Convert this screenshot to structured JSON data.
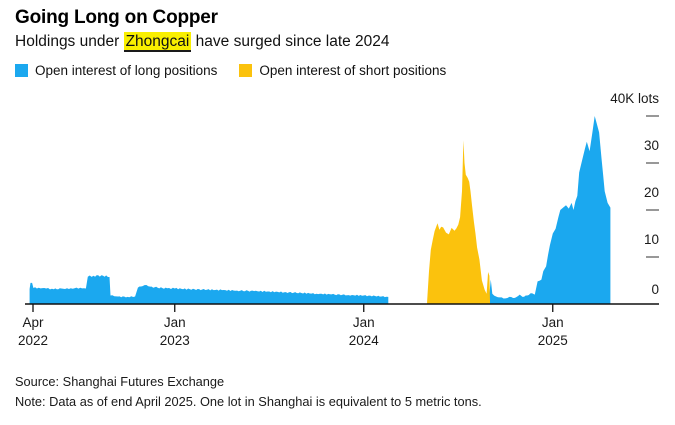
{
  "header": {
    "title": "Going Long on Copper",
    "subtitle_prefix": "Holdings under ",
    "subtitle_highlight": "Zhongcai",
    "subtitle_suffix": " have surged since late 2024",
    "highlight_color": "#F9EF00"
  },
  "legend": {
    "long_label": "Open interest of long positions",
    "short_label": "Open interest of short positions",
    "long_color": "#1BA8EF",
    "short_color": "#FBC20D"
  },
  "chart_data": {
    "type": "area",
    "title": "Going Long on Copper",
    "ylabel": "K lots",
    "unit": "thousand lots (1 lot = 5 metric tons)",
    "x_unit": "decimal_year",
    "x_range": [
      2022.2,
      2025.35
    ],
    "ylim": [
      0,
      40
    ],
    "grid": false,
    "legend_position": "top-left",
    "y_ticks": [
      {
        "label": "40K lots",
        "value": 40
      },
      {
        "label": "30",
        "value": 30
      },
      {
        "label": "20",
        "value": 20
      },
      {
        "label": "10",
        "value": 10
      },
      {
        "label": "0",
        "value": 0
      }
    ],
    "x_ticks": [
      {
        "month": "Apr",
        "year": "2022",
        "value": 2022.25
      },
      {
        "month": "Jan",
        "year": "2023",
        "value": 2023.0
      },
      {
        "month": "Jan",
        "year": "2024",
        "value": 2024.0
      },
      {
        "month": "Jan",
        "year": "2025",
        "value": 2025.0
      }
    ],
    "series": [
      {
        "name": "Open interest of long positions",
        "color": "#1BA8EF",
        "segments": [
          [
            [
              2022.232,
              3.2
            ],
            [
              2022.237,
              4.5
            ],
            [
              2022.245,
              4.5
            ],
            [
              2022.252,
              3.4
            ],
            [
              2022.28,
              3.45
            ],
            [
              2022.32,
              3.3
            ],
            [
              2022.36,
              3.15
            ],
            [
              2022.4,
              3.3
            ],
            [
              2022.44,
              3.2
            ],
            [
              2022.47,
              3.35
            ],
            [
              2022.5,
              3.45
            ],
            [
              2022.53,
              3.3
            ],
            [
              2022.54,
              5.8
            ],
            [
              2022.57,
              6.0
            ],
            [
              2022.62,
              6.05
            ],
            [
              2022.655,
              5.75
            ],
            [
              2022.66,
              1.8
            ],
            [
              2022.7,
              1.6
            ],
            [
              2022.75,
              1.5
            ],
            [
              2022.79,
              1.6
            ],
            [
              2022.805,
              3.5
            ],
            [
              2022.83,
              3.8
            ],
            [
              2022.85,
              4.05
            ],
            [
              2022.87,
              3.7
            ],
            [
              2022.91,
              3.45
            ],
            [
              2022.96,
              3.35
            ],
            [
              2023.0,
              3.3
            ],
            [
              2023.08,
              3.15
            ],
            [
              2023.17,
              3.05
            ],
            [
              2023.25,
              2.95
            ],
            [
              2023.33,
              2.85
            ],
            [
              2023.42,
              2.75
            ],
            [
              2023.5,
              2.65
            ],
            [
              2023.58,
              2.5
            ],
            [
              2023.67,
              2.35
            ],
            [
              2023.75,
              2.2
            ],
            [
              2023.83,
              2.05
            ],
            [
              2023.92,
              1.9
            ],
            [
              2024.0,
              1.8
            ],
            [
              2024.06,
              1.7
            ],
            [
              2024.12,
              1.55
            ],
            [
              2024.13,
              1.5
            ]
          ],
          [
            [
              2024.648,
              0.8
            ],
            [
              2024.655,
              1.2
            ],
            [
              2024.662,
              1.0
            ],
            [
              2024.672,
              5.2
            ],
            [
              2024.68,
              2.2
            ],
            [
              2024.7,
              1.6
            ],
            [
              2024.72,
              1.4
            ],
            [
              2024.75,
              1.2
            ],
            [
              2024.77,
              1.5
            ],
            [
              2024.8,
              1.3
            ],
            [
              2024.825,
              2.0
            ],
            [
              2024.84,
              1.5
            ],
            [
              2024.865,
              1.8
            ],
            [
              2024.89,
              2.3
            ],
            [
              2024.905,
              2.0
            ],
            [
              2024.92,
              4.8
            ],
            [
              2024.94,
              5.2
            ],
            [
              2024.95,
              7.0
            ],
            [
              2024.965,
              8.0
            ],
            [
              2024.985,
              12.5
            ],
            [
              2025.0,
              15.0
            ],
            [
              2025.015,
              16.0
            ],
            [
              2025.03,
              18.5
            ],
            [
              2025.04,
              20.0
            ],
            [
              2025.055,
              20.5
            ],
            [
              2025.07,
              21.0
            ],
            [
              2025.085,
              20.3
            ],
            [
              2025.1,
              21.5
            ],
            [
              2025.11,
              20.0
            ],
            [
              2025.13,
              23.0
            ],
            [
              2025.14,
              28.0
            ],
            [
              2025.155,
              30.5
            ],
            [
              2025.17,
              33.0
            ],
            [
              2025.18,
              34.5
            ],
            [
              2025.195,
              32.5
            ],
            [
              2025.21,
              36.5
            ],
            [
              2025.222,
              40.0
            ],
            [
              2025.232,
              38.5
            ],
            [
              2025.245,
              36.5
            ],
            [
              2025.258,
              31.0
            ],
            [
              2025.275,
              24.0
            ],
            [
              2025.29,
              21.5
            ],
            [
              2025.305,
              20.5
            ]
          ]
        ]
      },
      {
        "name": "Open interest of short positions",
        "color": "#FBC20D",
        "segments": [
          [
            [
              2024.335,
              0.5
            ],
            [
              2024.345,
              7.0
            ],
            [
              2024.355,
              11.5
            ],
            [
              2024.375,
              15.5
            ],
            [
              2024.39,
              17.2
            ],
            [
              2024.4,
              15.8
            ],
            [
              2024.42,
              16.3
            ],
            [
              2024.435,
              15.2
            ],
            [
              2024.45,
              14.8
            ],
            [
              2024.465,
              16.2
            ],
            [
              2024.48,
              15.6
            ],
            [
              2024.5,
              16.9
            ],
            [
              2024.51,
              18.5
            ],
            [
              2024.52,
              24.0
            ],
            [
              2024.527,
              34.8
            ],
            [
              2024.533,
              30.0
            ],
            [
              2024.54,
              27.5
            ],
            [
              2024.55,
              26.8
            ],
            [
              2024.558,
              26.0
            ],
            [
              2024.565,
              24.0
            ],
            [
              2024.573,
              21.0
            ],
            [
              2024.583,
              17.5
            ],
            [
              2024.6,
              12.0
            ],
            [
              2024.612,
              9.5
            ],
            [
              2024.625,
              5.0
            ],
            [
              2024.64,
              3.0
            ],
            [
              2024.65,
              2.2
            ],
            [
              2024.658,
              6.8
            ],
            [
              2024.665,
              6.0
            ],
            [
              2024.668,
              0.5
            ]
          ]
        ]
      }
    ]
  },
  "footer": {
    "source": "Source: Shanghai Futures Exchange",
    "note": "Note: Data as of end April 2025. One lot in Shanghai is equivalent to 5 metric tons."
  }
}
